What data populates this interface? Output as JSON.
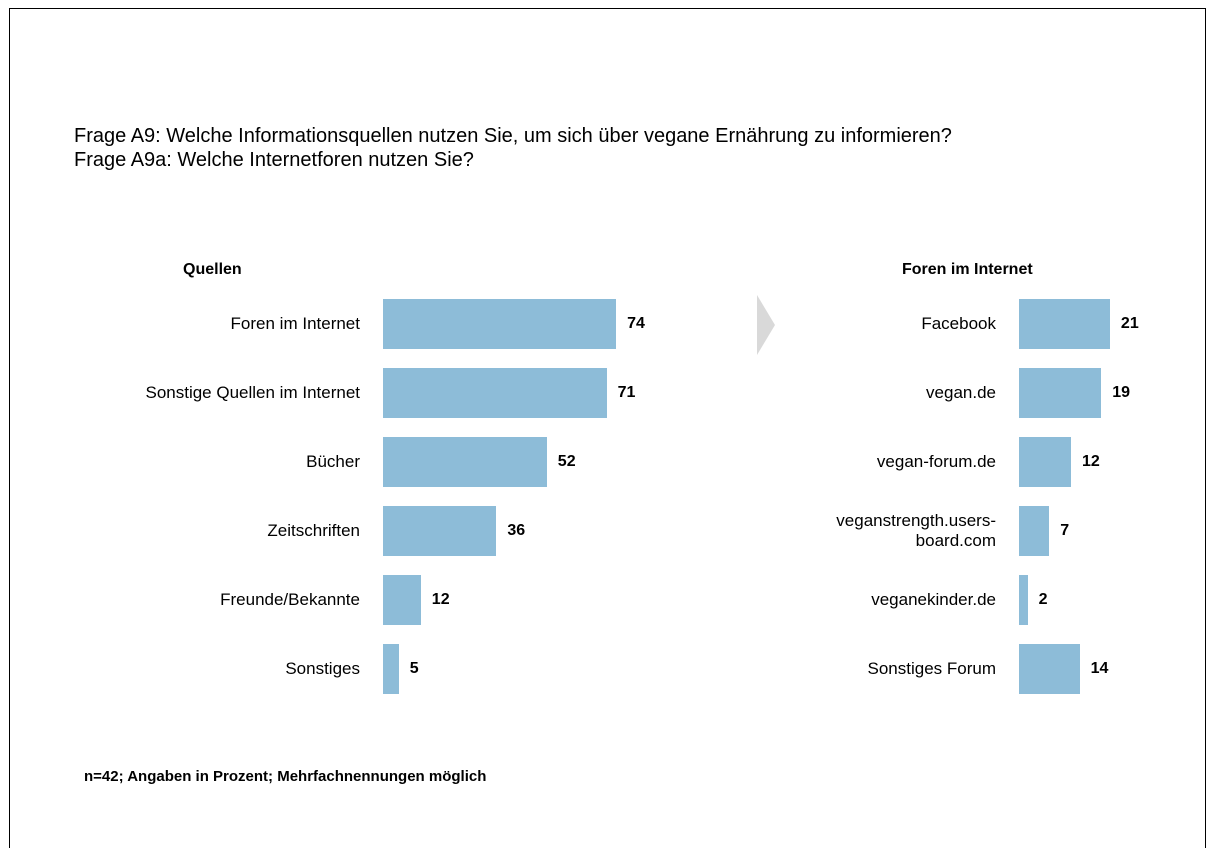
{
  "heading": [
    "Frage A9: Welche Informationsquellen nutzen Sie, um sich über vegane Ernährung zu informieren?",
    "Frage A9a: Welche Internetforen nutzen Sie?"
  ],
  "footnote": "n=42; Angaben in Prozent; Mehrfachnennungen möglich",
  "chart_data": [
    {
      "type": "bar",
      "orientation": "horizontal",
      "title": "Quellen",
      "color": "#8dbcd8",
      "categories": [
        "Foren im Internet",
        "Sonstige Quellen im Internet",
        "Bücher",
        "Zeitschriften",
        "Freunde/Bekannte",
        "Sonstiges"
      ],
      "values": [
        74,
        71,
        52,
        36,
        12,
        5
      ]
    },
    {
      "type": "bar",
      "orientation": "horizontal",
      "title": "Foren im Internet",
      "color": "#8dbcd8",
      "categories": [
        "Facebook",
        "vegan.de",
        "vegan-forum.de",
        "veganstrength.users-\nboard.com",
        "veganekinder.de",
        "Sonstiges Forum"
      ],
      "values": [
        21,
        19,
        12,
        7,
        2,
        14
      ]
    }
  ]
}
